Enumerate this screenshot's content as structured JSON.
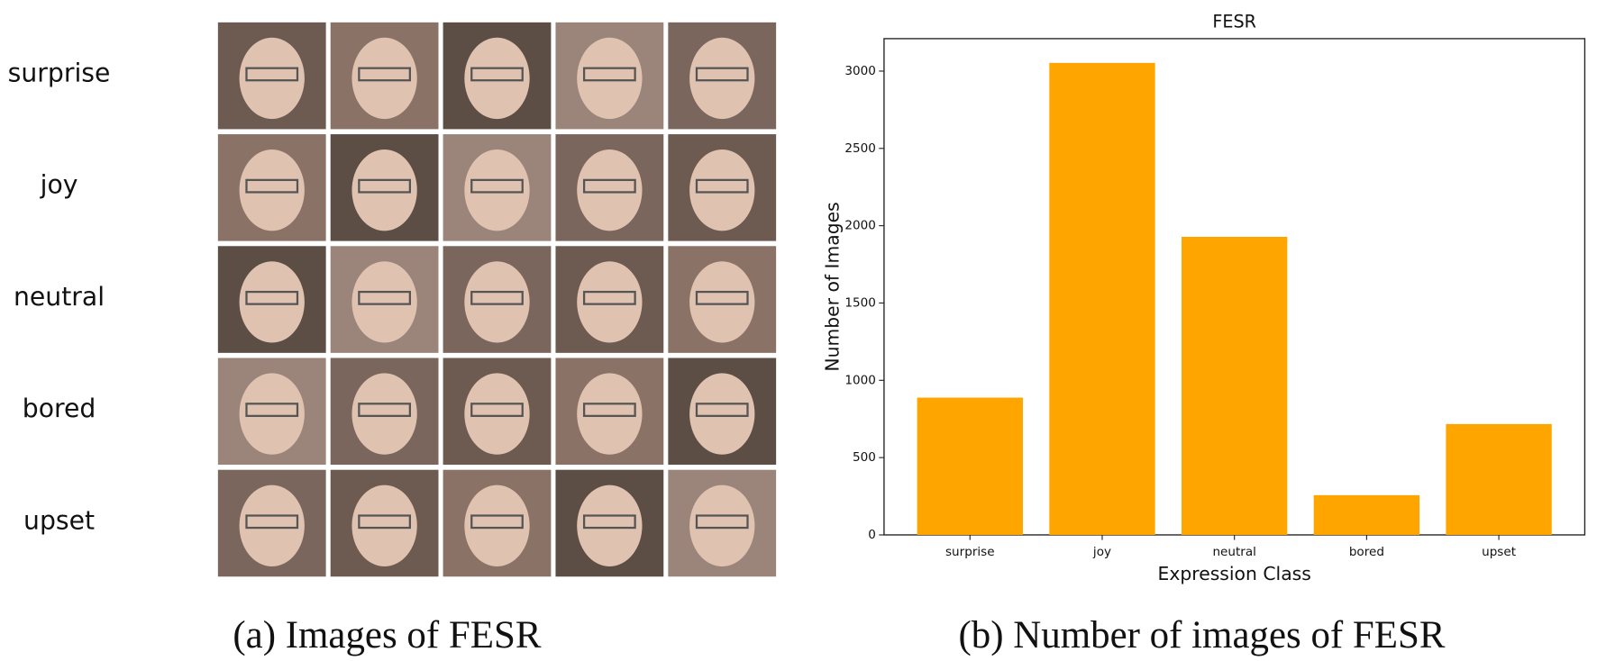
{
  "image_panel": {
    "row_labels": [
      "surprise",
      "joy",
      "neutral",
      "bored",
      "upset"
    ],
    "caption": "(a) Images of FESR"
  },
  "chart_data": {
    "type": "bar",
    "title": "FESR",
    "caption": "(b) Number of images of FESR",
    "x_label": "Expression Class",
    "y_label": "Number of Images",
    "categories": [
      "surprise",
      "joy",
      "neutral",
      "bored",
      "upset"
    ],
    "values": [
      888,
      3053,
      1928,
      257,
      717
    ],
    "color": "#ffa500",
    "ylim": [
      0,
      3210
    ],
    "yticks": [
      0,
      500,
      1000,
      1500,
      2000,
      2500,
      3000
    ]
  }
}
